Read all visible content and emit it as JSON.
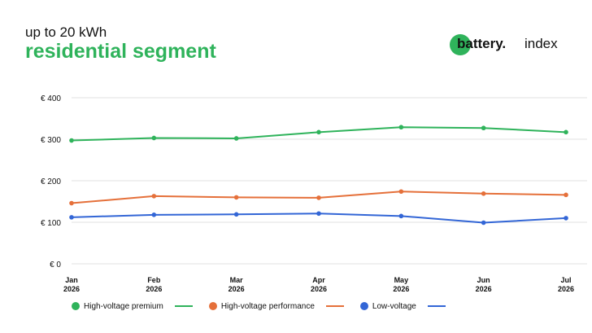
{
  "header": {
    "subtitle": "up to 20 kWh",
    "title": "residential segment"
  },
  "brand": {
    "word": "battery.",
    "index": "index",
    "color": "#2fb35b"
  },
  "chart_data": {
    "type": "line",
    "categories": [
      {
        "month": "Jan",
        "year": "2026"
      },
      {
        "month": "Feb",
        "year": "2026"
      },
      {
        "month": "Mar",
        "year": "2026"
      },
      {
        "month": "Apr",
        "year": "2026"
      },
      {
        "month": "May",
        "year": "2026"
      },
      {
        "month": "Jun",
        "year": "2026"
      },
      {
        "month": "Jul",
        "year": "2026"
      }
    ],
    "yticks": [
      {
        "value": 0,
        "label": "€ 0"
      },
      {
        "value": 100,
        "label": "€ 100"
      },
      {
        "value": 200,
        "label": "€ 200"
      },
      {
        "value": 300,
        "label": "€ 300"
      },
      {
        "value": 400,
        "label": "€ 400"
      }
    ],
    "ylim": [
      0,
      400
    ],
    "grid": true,
    "legend_position": "bottom",
    "series": [
      {
        "name": "High-voltage premium",
        "color": "#2fb35b",
        "values": [
          297,
          303,
          302,
          317,
          329,
          327,
          317
        ]
      },
      {
        "name": "High-voltage performance",
        "color": "#e5703a",
        "values": [
          146,
          163,
          160,
          159,
          174,
          169,
          166
        ]
      },
      {
        "name": "Low-voltage",
        "color": "#3366d6",
        "values": [
          112,
          118,
          119,
          121,
          115,
          99,
          110
        ]
      }
    ]
  }
}
